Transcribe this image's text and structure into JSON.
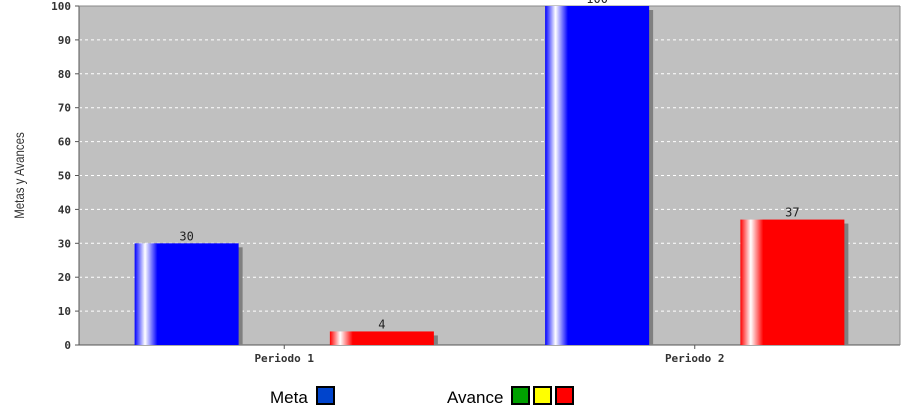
{
  "chart_data": {
    "type": "bar",
    "title": "",
    "xlabel": "",
    "ylabel": "Metas y Avances",
    "ylim": [
      0,
      100
    ],
    "yticks": [
      0,
      10,
      20,
      30,
      40,
      50,
      60,
      70,
      80,
      90,
      100
    ],
    "grid": true,
    "categories": [
      "Periodo 1",
      "Periodo 2"
    ],
    "series": [
      {
        "name": "Meta",
        "values": [
          30,
          100
        ],
        "color": "#0000FF"
      },
      {
        "name": "Avance",
        "values": [
          4,
          37
        ],
        "color": "#FF0000"
      }
    ],
    "data_labels": true,
    "legend_position": "bottom"
  },
  "legend": {
    "meta_label": "Meta",
    "meta_colors": [
      "#0044CC"
    ],
    "avance_label": "Avance",
    "avance_colors": [
      "#00A000",
      "#FFFF00",
      "#FF0000"
    ]
  },
  "colors": {
    "plot_background": "#C0C0C0",
    "gridline": "#FFFFFF",
    "shadow": "#808080"
  }
}
